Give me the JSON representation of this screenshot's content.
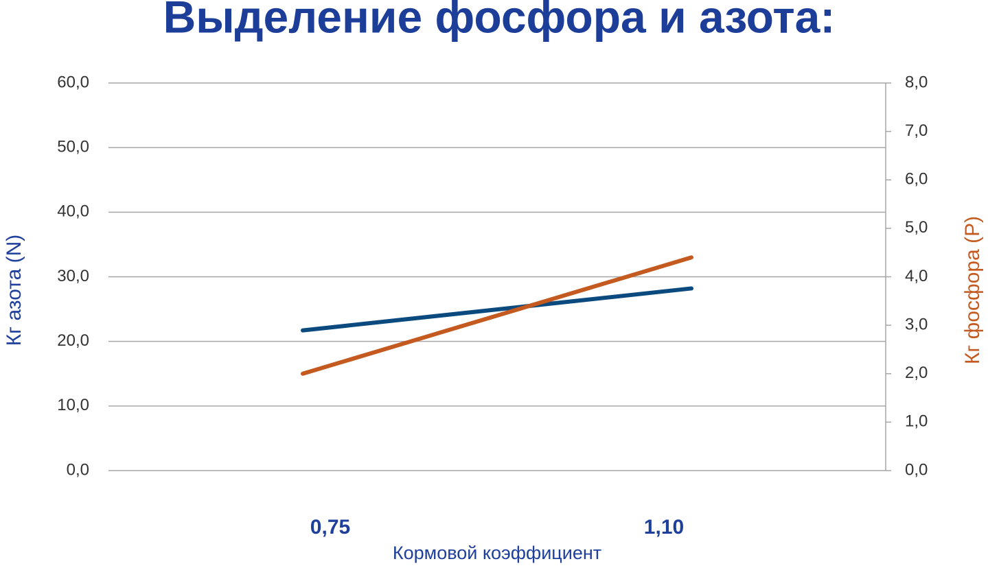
{
  "chart_data": {
    "type": "line",
    "title": "Выделение фосфора и азота:",
    "x_label": "Кормовой коэффициент",
    "y_label": "Кг азота (N)",
    "y2_label": "Кг фосфора (P)",
    "categories": [
      "0,75",
      "1,10"
    ],
    "series": [
      {
        "color": "#0b4a7e",
        "values": [
          21.7,
          28.2
        ]
      },
      {
        "color": "#c45a1f",
        "axis": "y2",
        "values": [
          2.0,
          4.4
        ]
      }
    ],
    "ylim": [
      0,
      60
    ],
    "yticks": [
      {
        "value": 0,
        "label": "0,0"
      },
      {
        "value": 10,
        "label": "10,0"
      },
      {
        "value": 20,
        "label": "20,0"
      },
      {
        "value": 30,
        "label": "30,0"
      },
      {
        "value": 40,
        "label": "40,0"
      },
      {
        "value": 50,
        "label": "50,0"
      },
      {
        "value": 60,
        "label": "60,0"
      }
    ],
    "y2lim": [
      0,
      8
    ],
    "y2ticks": [
      {
        "value": 0,
        "label": "0,0"
      },
      {
        "value": 1,
        "label": "1,0"
      },
      {
        "value": 2,
        "label": "2,0"
      },
      {
        "value": 3,
        "label": "3,0"
      },
      {
        "value": 4,
        "label": "4,0"
      },
      {
        "value": 5,
        "label": "5,0"
      },
      {
        "value": 6,
        "label": "6,0"
      },
      {
        "value": 7,
        "label": "7,0"
      },
      {
        "value": 8,
        "label": "8,0"
      }
    ],
    "grid": true
  }
}
